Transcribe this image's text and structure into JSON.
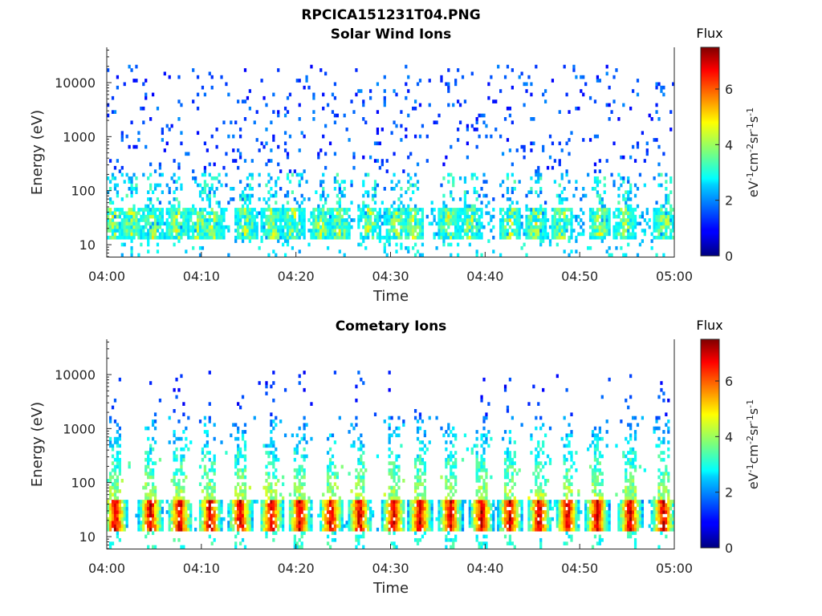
{
  "figure": {
    "title": "RPCICA151231T04.PNG"
  },
  "chart_data": [
    {
      "type": "heatmap",
      "title": "Solar Wind Ions",
      "xlabel": "Time",
      "ylabel": "Energy (eV)",
      "x_ticks": [
        "04:00",
        "04:10",
        "04:20",
        "04:30",
        "04:40",
        "04:50",
        "05:00"
      ],
      "y_ticks": [
        "10",
        "100",
        "1000",
        "10000"
      ],
      "y_scale": "log",
      "xlim": [
        "04:00",
        "05:00"
      ],
      "ylim": [
        6,
        45000
      ],
      "colorbar": {
        "title": "Flux",
        "label": "eV-1cm-2sr-1s-1",
        "ticks": [
          "0",
          "2",
          "4",
          "6"
        ],
        "range": [
          0,
          7.5
        ],
        "colormap": "jet"
      },
      "pattern": {
        "low_energy_band": [
          12,
          45
        ],
        "sparse_high_energy": [
          200,
          15000
        ],
        "burst_minutes": [
          0.5,
          2.5,
          4.7,
          7.3,
          9.6,
          11.1,
          14.6,
          17.4,
          19.6,
          22.5,
          24.5,
          27.6,
          30.5,
          32.3,
          36.0,
          38.4,
          42.5,
          45.2,
          48.0,
          52.0,
          54.6,
          58.9
        ],
        "typical_flux": [
          1.5,
          4.5
        ],
        "peak_flux": 5.0
      }
    },
    {
      "type": "heatmap",
      "title": "Cometary Ions",
      "xlabel": "Time",
      "ylabel": "Energy (eV)",
      "x_ticks": [
        "04:00",
        "04:10",
        "04:20",
        "04:30",
        "04:40",
        "04:50",
        "05:00"
      ],
      "y_ticks": [
        "10",
        "100",
        "1000",
        "10000"
      ],
      "y_scale": "log",
      "xlim": [
        "04:00",
        "05:00"
      ],
      "ylim": [
        6,
        45000
      ],
      "colorbar": {
        "title": "Flux",
        "label": "eV-1cm-2sr-1s-1",
        "ticks": [
          "0",
          "2",
          "4",
          "6"
        ],
        "range": [
          0,
          7.5
        ],
        "colormap": "jet"
      },
      "pattern": {
        "burst_minutes": [
          0.8,
          4.5,
          7.6,
          10.8,
          14.0,
          17.3,
          20.3,
          23.6,
          26.6,
          30.2,
          33.0,
          36.2,
          39.5,
          42.5,
          45.6,
          48.6,
          51.7,
          55.2,
          58.7
        ],
        "band_core": [
          15,
          45
        ],
        "peak_flux": [
          5.0,
          7.0
        ],
        "plume_max_energy": 1500,
        "sparse_high_energy": [
          800,
          9000
        ]
      }
    }
  ]
}
